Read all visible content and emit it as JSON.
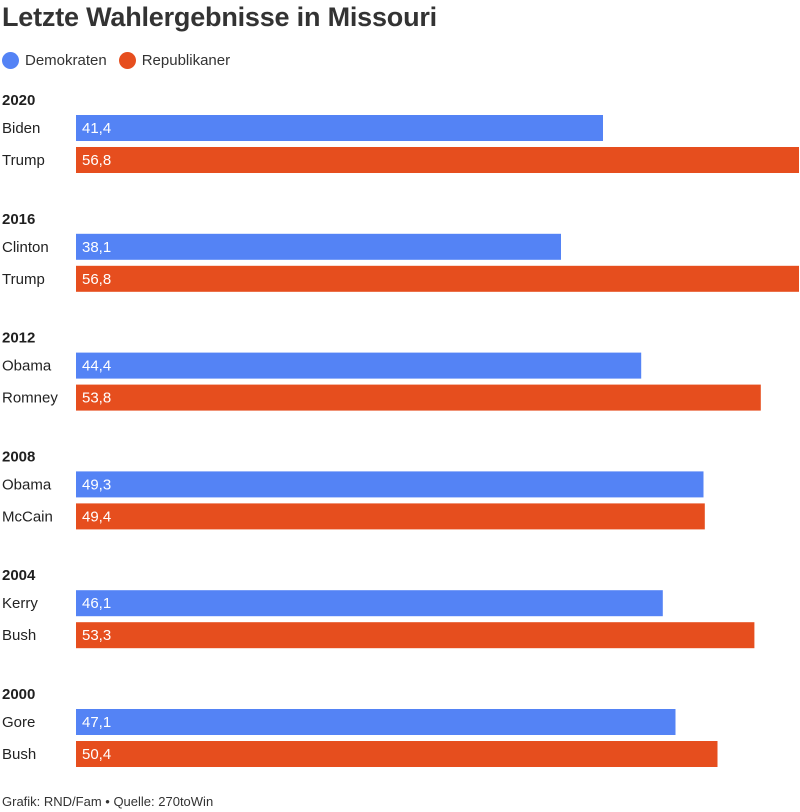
{
  "colors": {
    "dem": "#5483f5",
    "rep": "#e64e1e"
  },
  "chart_data": {
    "type": "bar",
    "orientation": "horizontal",
    "title": "Letzte Wahlergebnisse in Missouri",
    "legend": [
      {
        "name": "Demokraten",
        "color": "#5483f5"
      },
      {
        "name": "Republikaner",
        "color": "#e64e1e"
      }
    ],
    "xlim": [
      0,
      56.8
    ],
    "groups": [
      {
        "year": "2020",
        "bars": [
          {
            "candidate": "Biden",
            "party": "dem",
            "value": 41.4,
            "label": "41,4"
          },
          {
            "candidate": "Trump",
            "party": "rep",
            "value": 56.8,
            "label": "56,8"
          }
        ]
      },
      {
        "year": "2016",
        "bars": [
          {
            "candidate": "Clinton",
            "party": "dem",
            "value": 38.1,
            "label": "38,1"
          },
          {
            "candidate": "Trump",
            "party": "rep",
            "value": 56.8,
            "label": "56,8"
          }
        ]
      },
      {
        "year": "2012",
        "bars": [
          {
            "candidate": "Obama",
            "party": "dem",
            "value": 44.4,
            "label": "44,4"
          },
          {
            "candidate": "Romney",
            "party": "rep",
            "value": 53.8,
            "label": "53,8"
          }
        ]
      },
      {
        "year": "2008",
        "bars": [
          {
            "candidate": "Obama",
            "party": "dem",
            "value": 49.3,
            "label": "49,3"
          },
          {
            "candidate": "McCain",
            "party": "rep",
            "value": 49.4,
            "label": "49,4"
          }
        ]
      },
      {
        "year": "2004",
        "bars": [
          {
            "candidate": "Kerry",
            "party": "dem",
            "value": 46.1,
            "label": "46,1"
          },
          {
            "candidate": "Bush",
            "party": "rep",
            "value": 53.3,
            "label": "53,3"
          }
        ]
      },
      {
        "year": "2000",
        "bars": [
          {
            "candidate": "Gore",
            "party": "dem",
            "value": 47.1,
            "label": "47,1"
          },
          {
            "candidate": "Bush",
            "party": "rep",
            "value": 50.4,
            "label": "50,4"
          }
        ]
      }
    ]
  },
  "footer": "Grafik: RND/Fam • Quelle: 270toWin"
}
